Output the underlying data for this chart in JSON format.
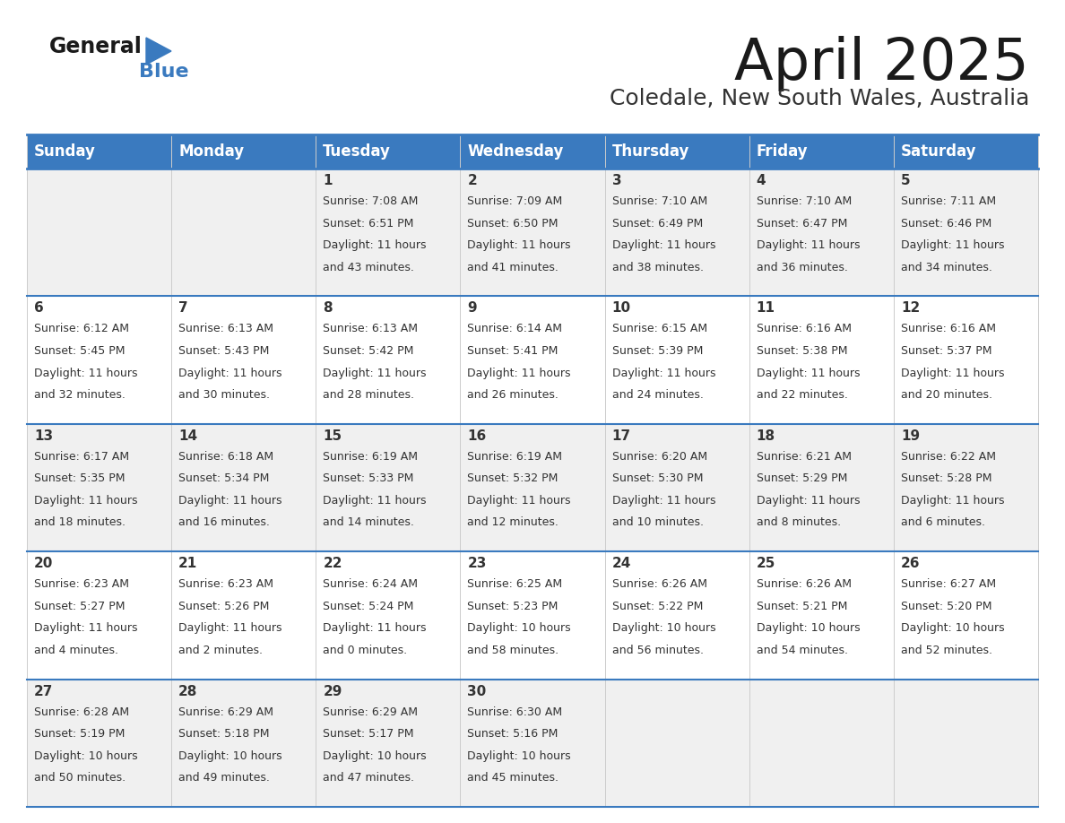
{
  "title": "April 2025",
  "subtitle": "Coledale, New South Wales, Australia",
  "header_bg": "#3a7abf",
  "header_text_color": "#ffffff",
  "row_bg_light": "#f0f0f0",
  "row_bg_white": "#ffffff",
  "border_color": "#3a7abf",
  "day_headers": [
    "Sunday",
    "Monday",
    "Tuesday",
    "Wednesday",
    "Thursday",
    "Friday",
    "Saturday"
  ],
  "title_color": "#1a1a1a",
  "subtitle_color": "#333333",
  "text_color": "#333333",
  "days": [
    {
      "day": 1,
      "col": 2,
      "row": 0,
      "sunrise": "7:08 AM",
      "sunset": "6:51 PM",
      "daylight_hours": 11,
      "daylight_minutes": 43
    },
    {
      "day": 2,
      "col": 3,
      "row": 0,
      "sunrise": "7:09 AM",
      "sunset": "6:50 PM",
      "daylight_hours": 11,
      "daylight_minutes": 41
    },
    {
      "day": 3,
      "col": 4,
      "row": 0,
      "sunrise": "7:10 AM",
      "sunset": "6:49 PM",
      "daylight_hours": 11,
      "daylight_minutes": 38
    },
    {
      "day": 4,
      "col": 5,
      "row": 0,
      "sunrise": "7:10 AM",
      "sunset": "6:47 PM",
      "daylight_hours": 11,
      "daylight_minutes": 36
    },
    {
      "day": 5,
      "col": 6,
      "row": 0,
      "sunrise": "7:11 AM",
      "sunset": "6:46 PM",
      "daylight_hours": 11,
      "daylight_minutes": 34
    },
    {
      "day": 6,
      "col": 0,
      "row": 1,
      "sunrise": "6:12 AM",
      "sunset": "5:45 PM",
      "daylight_hours": 11,
      "daylight_minutes": 32
    },
    {
      "day": 7,
      "col": 1,
      "row": 1,
      "sunrise": "6:13 AM",
      "sunset": "5:43 PM",
      "daylight_hours": 11,
      "daylight_minutes": 30
    },
    {
      "day": 8,
      "col": 2,
      "row": 1,
      "sunrise": "6:13 AM",
      "sunset": "5:42 PM",
      "daylight_hours": 11,
      "daylight_minutes": 28
    },
    {
      "day": 9,
      "col": 3,
      "row": 1,
      "sunrise": "6:14 AM",
      "sunset": "5:41 PM",
      "daylight_hours": 11,
      "daylight_minutes": 26
    },
    {
      "day": 10,
      "col": 4,
      "row": 1,
      "sunrise": "6:15 AM",
      "sunset": "5:39 PM",
      "daylight_hours": 11,
      "daylight_minutes": 24
    },
    {
      "day": 11,
      "col": 5,
      "row": 1,
      "sunrise": "6:16 AM",
      "sunset": "5:38 PM",
      "daylight_hours": 11,
      "daylight_minutes": 22
    },
    {
      "day": 12,
      "col": 6,
      "row": 1,
      "sunrise": "6:16 AM",
      "sunset": "5:37 PM",
      "daylight_hours": 11,
      "daylight_minutes": 20
    },
    {
      "day": 13,
      "col": 0,
      "row": 2,
      "sunrise": "6:17 AM",
      "sunset": "5:35 PM",
      "daylight_hours": 11,
      "daylight_minutes": 18
    },
    {
      "day": 14,
      "col": 1,
      "row": 2,
      "sunrise": "6:18 AM",
      "sunset": "5:34 PM",
      "daylight_hours": 11,
      "daylight_minutes": 16
    },
    {
      "day": 15,
      "col": 2,
      "row": 2,
      "sunrise": "6:19 AM",
      "sunset": "5:33 PM",
      "daylight_hours": 11,
      "daylight_minutes": 14
    },
    {
      "day": 16,
      "col": 3,
      "row": 2,
      "sunrise": "6:19 AM",
      "sunset": "5:32 PM",
      "daylight_hours": 11,
      "daylight_minutes": 12
    },
    {
      "day": 17,
      "col": 4,
      "row": 2,
      "sunrise": "6:20 AM",
      "sunset": "5:30 PM",
      "daylight_hours": 11,
      "daylight_minutes": 10
    },
    {
      "day": 18,
      "col": 5,
      "row": 2,
      "sunrise": "6:21 AM",
      "sunset": "5:29 PM",
      "daylight_hours": 11,
      "daylight_minutes": 8
    },
    {
      "day": 19,
      "col": 6,
      "row": 2,
      "sunrise": "6:22 AM",
      "sunset": "5:28 PM",
      "daylight_hours": 11,
      "daylight_minutes": 6
    },
    {
      "day": 20,
      "col": 0,
      "row": 3,
      "sunrise": "6:23 AM",
      "sunset": "5:27 PM",
      "daylight_hours": 11,
      "daylight_minutes": 4
    },
    {
      "day": 21,
      "col": 1,
      "row": 3,
      "sunrise": "6:23 AM",
      "sunset": "5:26 PM",
      "daylight_hours": 11,
      "daylight_minutes": 2
    },
    {
      "day": 22,
      "col": 2,
      "row": 3,
      "sunrise": "6:24 AM",
      "sunset": "5:24 PM",
      "daylight_hours": 11,
      "daylight_minutes": 0
    },
    {
      "day": 23,
      "col": 3,
      "row": 3,
      "sunrise": "6:25 AM",
      "sunset": "5:23 PM",
      "daylight_hours": 10,
      "daylight_minutes": 58
    },
    {
      "day": 24,
      "col": 4,
      "row": 3,
      "sunrise": "6:26 AM",
      "sunset": "5:22 PM",
      "daylight_hours": 10,
      "daylight_minutes": 56
    },
    {
      "day": 25,
      "col": 5,
      "row": 3,
      "sunrise": "6:26 AM",
      "sunset": "5:21 PM",
      "daylight_hours": 10,
      "daylight_minutes": 54
    },
    {
      "day": 26,
      "col": 6,
      "row": 3,
      "sunrise": "6:27 AM",
      "sunset": "5:20 PM",
      "daylight_hours": 10,
      "daylight_minutes": 52
    },
    {
      "day": 27,
      "col": 0,
      "row": 4,
      "sunrise": "6:28 AM",
      "sunset": "5:19 PM",
      "daylight_hours": 10,
      "daylight_minutes": 50
    },
    {
      "day": 28,
      "col": 1,
      "row": 4,
      "sunrise": "6:29 AM",
      "sunset": "5:18 PM",
      "daylight_hours": 10,
      "daylight_minutes": 49
    },
    {
      "day": 29,
      "col": 2,
      "row": 4,
      "sunrise": "6:29 AM",
      "sunset": "5:17 PM",
      "daylight_hours": 10,
      "daylight_minutes": 47
    },
    {
      "day": 30,
      "col": 3,
      "row": 4,
      "sunrise": "6:30 AM",
      "sunset": "5:16 PM",
      "daylight_hours": 10,
      "daylight_minutes": 45
    }
  ]
}
